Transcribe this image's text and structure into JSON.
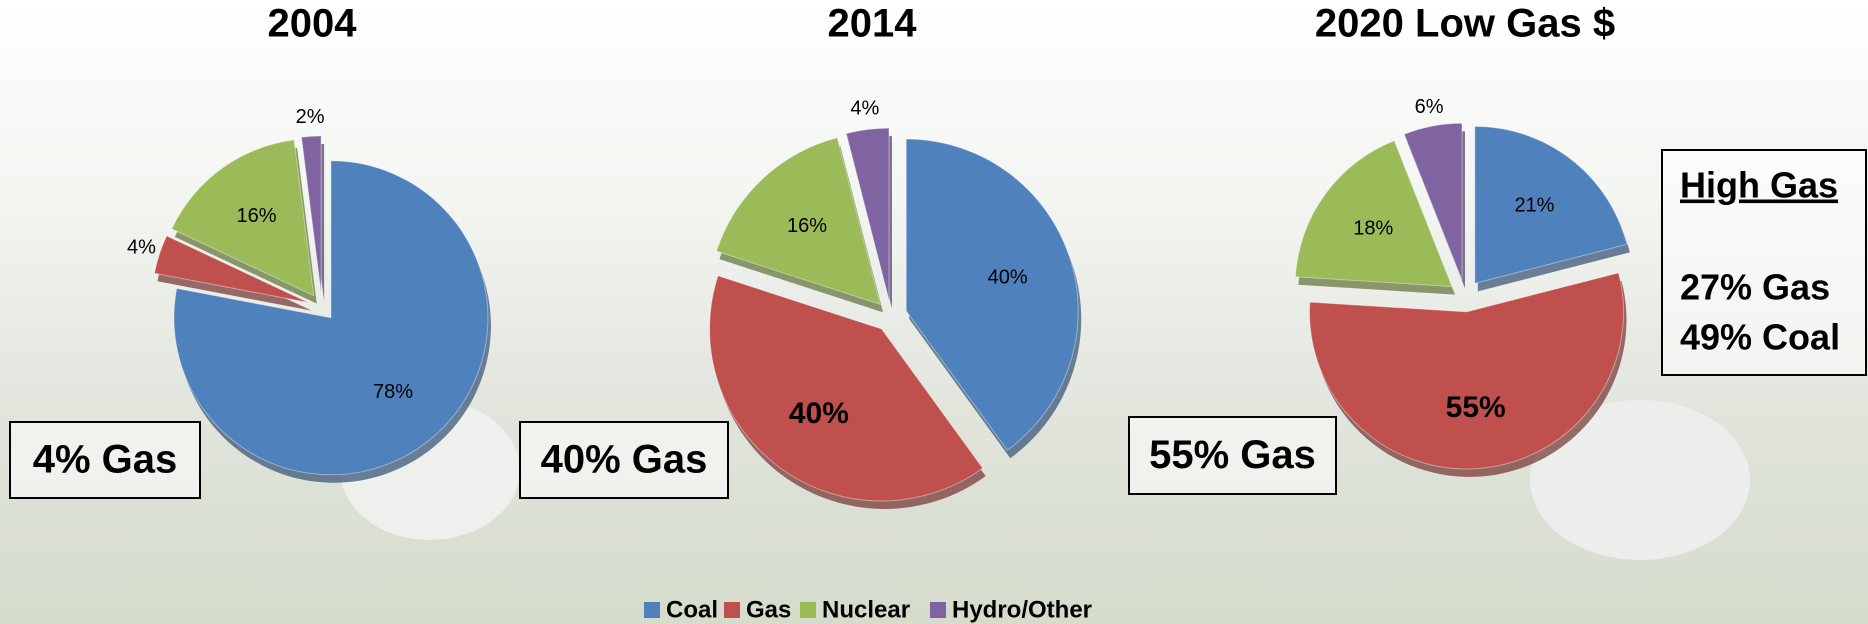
{
  "chart_data": [
    {
      "type": "pie",
      "title": "2004",
      "categories": [
        "Coal",
        "Gas",
        "Nuclear",
        "Hydro/Other"
      ],
      "values": [
        78,
        4,
        16,
        2
      ],
      "value_labels": [
        "78%",
        "4%",
        "16%",
        "2%"
      ],
      "colors": [
        "#4f81bd",
        "#c0504d",
        "#9bbb59",
        "#8064a2"
      ],
      "annotation": "4% Gas"
    },
    {
      "type": "pie",
      "title": "2014",
      "categories": [
        "Coal",
        "Gas",
        "Nuclear",
        "Hydro/Other"
      ],
      "values": [
        40,
        40,
        16,
        4
      ],
      "value_labels": [
        "40%",
        "40%",
        "16%",
        "4%"
      ],
      "colors": [
        "#4f81bd",
        "#c0504d",
        "#9bbb59",
        "#8064a2"
      ],
      "annotation": "40% Gas"
    },
    {
      "type": "pie",
      "title": "2020 Low Gas $",
      "categories": [
        "Coal",
        "Gas",
        "Nuclear",
        "Hydro/Other"
      ],
      "values": [
        21,
        55,
        18,
        6
      ],
      "value_labels": [
        "21%",
        "55%",
        "18%",
        "6%"
      ],
      "colors": [
        "#4f81bd",
        "#c0504d",
        "#9bbb59",
        "#8064a2"
      ],
      "annotation": "55% Gas",
      "scenario": {
        "title": "High Gas",
        "lines": [
          "27% Gas",
          "49% Coal"
        ]
      }
    }
  ]
}
